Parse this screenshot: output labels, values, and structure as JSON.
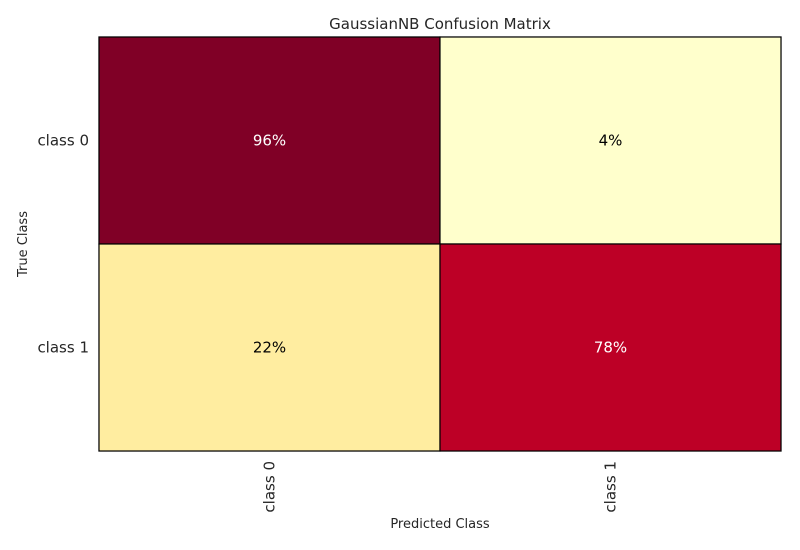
{
  "chart_data": {
    "type": "heatmap",
    "title": "GaussianNB Confusion Matrix",
    "xlabel": "Predicted Class",
    "ylabel": "True Class",
    "x_categories": [
      "class 0",
      "class 1"
    ],
    "y_categories": [
      "class 0",
      "class 1"
    ],
    "values": [
      [
        96,
        4
      ],
      [
        22,
        78
      ]
    ],
    "cell_labels": [
      [
        "96%",
        "4%"
      ],
      [
        "22%",
        "78%"
      ]
    ],
    "cell_colors": [
      [
        "#800026",
        "#ffffcc"
      ],
      [
        "#ffeda0",
        "#bd0026"
      ]
    ],
    "label_colors": [
      [
        "#ffffff",
        "#000000"
      ],
      [
        "#000000",
        "#ffffff"
      ]
    ],
    "colormap": "YlOrRd",
    "grid": false
  }
}
